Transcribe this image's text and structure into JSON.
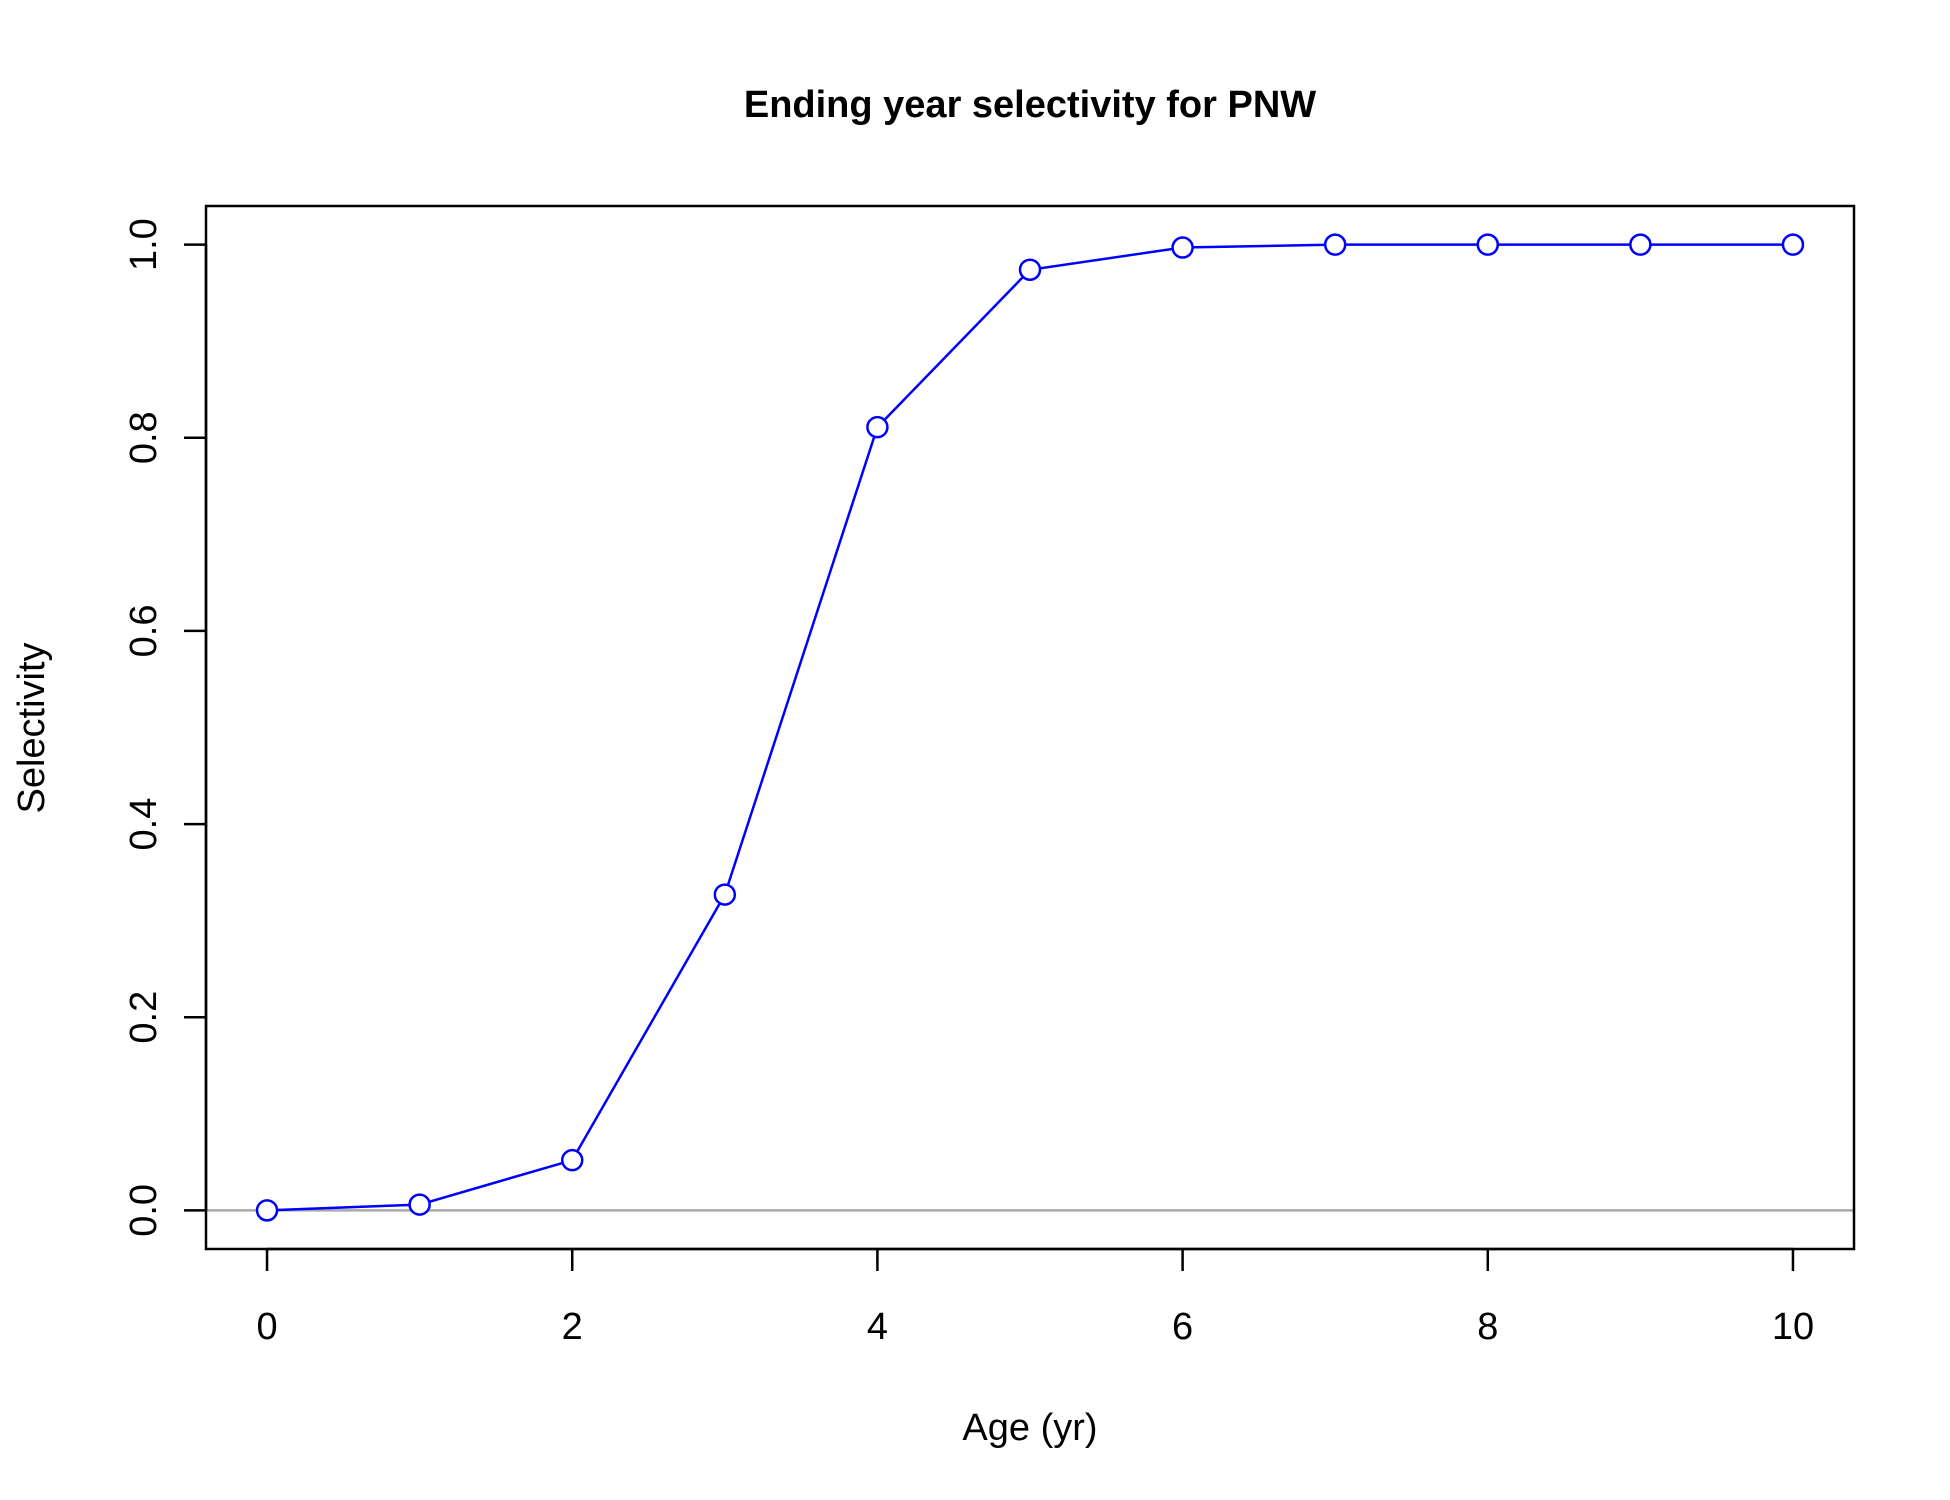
{
  "chart_data": {
    "type": "line",
    "title": "Ending year selectivity for PNW",
    "xlabel": "Age (yr)",
    "ylabel": "Selectivity",
    "x": [
      0,
      1,
      2,
      3,
      4,
      5,
      6,
      7,
      8,
      9,
      10
    ],
    "series": [
      {
        "values": [
          0.0,
          0.006,
          0.052,
          0.327,
          0.811,
          0.974,
          0.997,
          1.0,
          1.0,
          1.0,
          1.0
        ],
        "color": "#0000ff",
        "marker": "open-circle"
      }
    ],
    "xlim": [
      -0.4,
      10.4
    ],
    "ylim": [
      -0.04,
      1.04
    ],
    "xticks": [
      0,
      2,
      4,
      6,
      8,
      10
    ],
    "xtick_labels": [
      "0",
      "2",
      "4",
      "6",
      "8",
      "10"
    ],
    "yticks": [
      0.0,
      0.2,
      0.4,
      0.6,
      0.8,
      1.0
    ],
    "ytick_labels": [
      "0.0",
      "0.2",
      "0.4",
      "0.6",
      "0.8",
      "1.0"
    ],
    "reference_line": {
      "y": 0,
      "color": "#aaaaaa"
    },
    "grid": false,
    "legend": "none"
  }
}
